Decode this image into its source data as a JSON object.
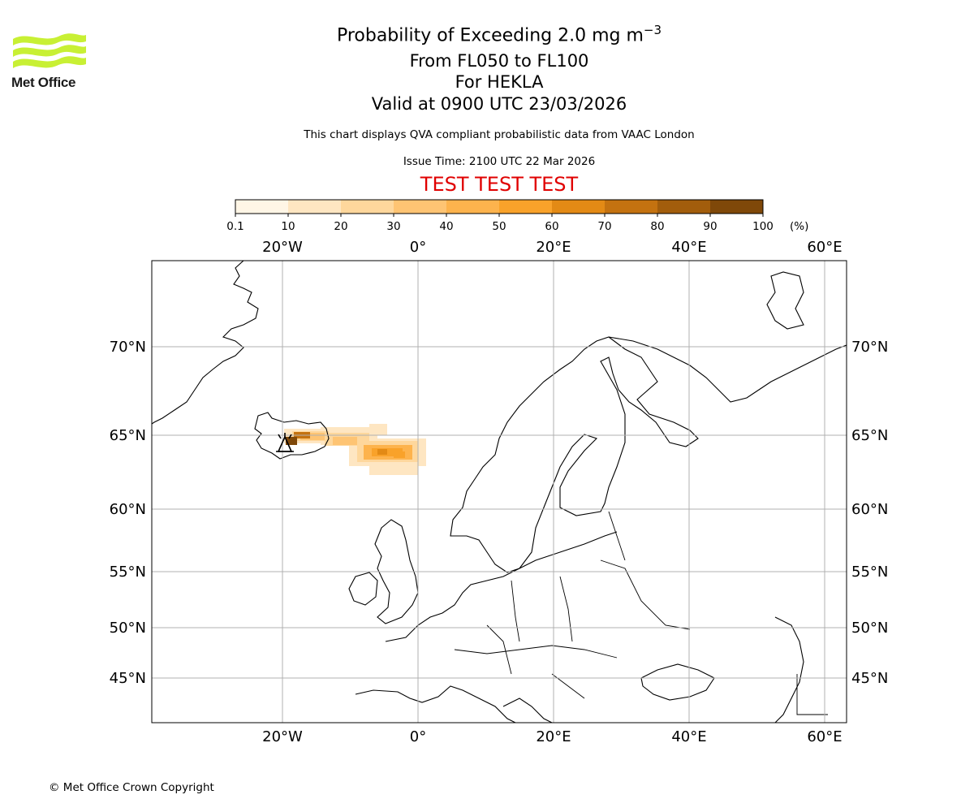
{
  "header": {
    "logo_text": "Met Office",
    "title_prefix": "Probability of Exceeding 2.0 mg m",
    "title_exponent": "−3",
    "flight_levels": "From FL050 to FL100",
    "volcano": "For HEKLA",
    "valid_time": "Valid at 0900 UTC 23/03/2026",
    "description": "This chart displays QVA compliant probabilistic data from VAAC London",
    "issue_time": "Issue Time: 2100 UTC 22 Mar 2026",
    "test_banner": "TEST TEST TEST"
  },
  "colorbar": {
    "ticks": [
      "0.1",
      "10",
      "20",
      "30",
      "40",
      "50",
      "60",
      "70",
      "80",
      "90",
      "100"
    ],
    "unit": "(%)",
    "colors": [
      "#fff6e6",
      "#fee6c2",
      "#fed79c",
      "#fec473",
      "#fdb34d",
      "#f9a22a",
      "#e38a15",
      "#c47210",
      "#a25d0c",
      "#7f4809",
      "#633807"
    ]
  },
  "map": {
    "lon_labels": [
      "20°W",
      "0°",
      "20°E",
      "40°E",
      "60°E"
    ],
    "lat_labels": [
      "70°N",
      "65°N",
      "60°N",
      "55°N",
      "50°N",
      "45°N"
    ],
    "volcano_marker": "volcano-symbol"
  },
  "footer": {
    "copyright": "© Met Office Crown Copyright"
  }
}
